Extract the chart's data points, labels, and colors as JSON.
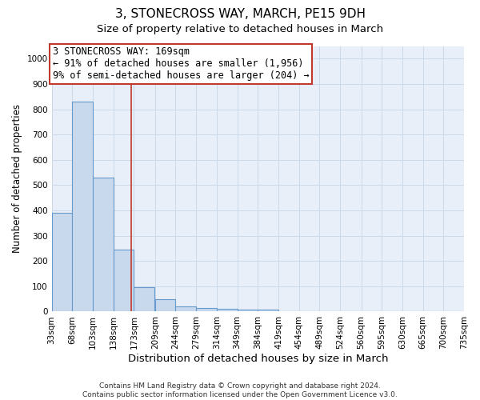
{
  "title": "3, STONECROSS WAY, MARCH, PE15 9DH",
  "subtitle": "Size of property relative to detached houses in March",
  "xlabel": "Distribution of detached houses by size in March",
  "ylabel": "Number of detached properties",
  "bin_edges": [
    33,
    68,
    103,
    138,
    173,
    209,
    244,
    279,
    314,
    349,
    384,
    419,
    454,
    489,
    524,
    560,
    595,
    630,
    665,
    700,
    735
  ],
  "bar_values": [
    390,
    830,
    530,
    245,
    95,
    50,
    20,
    15,
    10,
    8,
    8,
    0,
    0,
    0,
    0,
    0,
    0,
    0,
    0,
    0
  ],
  "bar_color": "#c8d9ee",
  "bar_edge_color": "#6699cc",
  "bar_edge_width": 0.8,
  "ylim": [
    0,
    1050
  ],
  "yticks": [
    0,
    100,
    200,
    300,
    400,
    500,
    600,
    700,
    800,
    900,
    1000
  ],
  "property_line_x": 169,
  "property_line_color": "#c0392b",
  "annotation_line1": "3 STONECROSS WAY: 169sqm",
  "annotation_line2": "← 91% of detached houses are smaller (1,956)",
  "annotation_line3": "9% of semi-detached houses are larger (204) →",
  "annotation_box_color": "#c0392b",
  "footnote": "Contains HM Land Registry data © Crown copyright and database right 2024.\nContains public sector information licensed under the Open Government Licence v3.0.",
  "grid_color": "#ccd9e8",
  "background_color": "#e8eff8",
  "title_fontsize": 11,
  "subtitle_fontsize": 9.5,
  "tick_fontsize": 7.5,
  "xlabel_fontsize": 9.5,
  "ylabel_fontsize": 8.5,
  "footnote_fontsize": 6.5,
  "annotation_fontsize": 8.5
}
